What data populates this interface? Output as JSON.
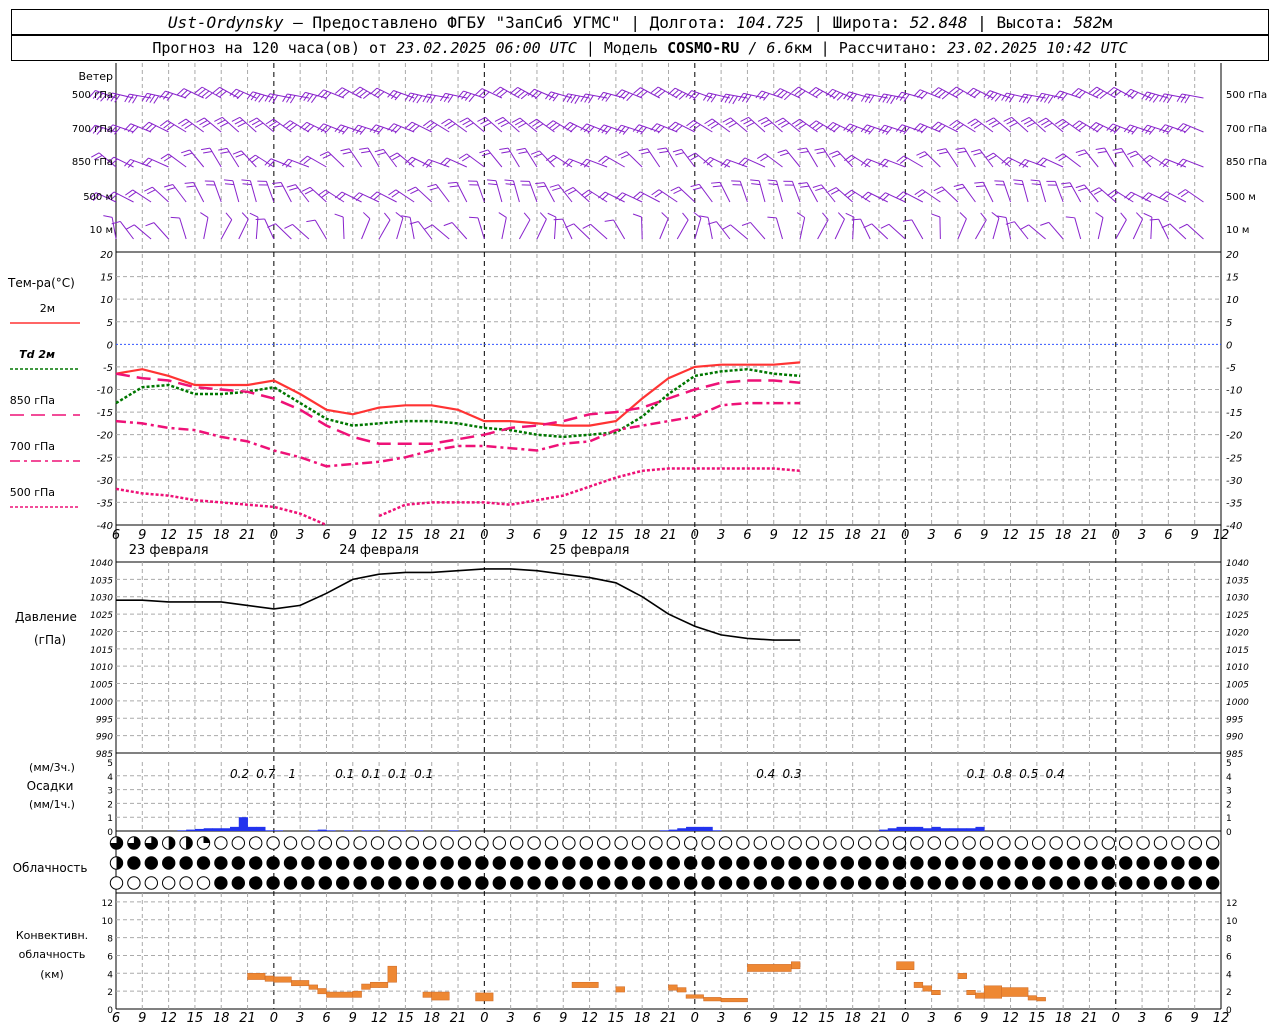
{
  "header": {
    "station": "Ust-Ordynsky",
    "provider": "— Предоставлено ФГБУ \"ЗапСиб УГМС\"",
    "lon_label": "Долгота:",
    "lon_value": "104.725",
    "lat_label": "Широта:",
    "lat_value": "52.848",
    "alt_label": "Высота:",
    "alt_value": "582",
    "alt_unit": "м",
    "sep": "|",
    "forecast_label": "Прогноз на 120 часа(ов) от",
    "forecast_from": "23.02.2025 06:00 UTC",
    "model_label": "Модель",
    "model_name": "COSMO-RU",
    "model_res": "/ 6.6",
    "model_res_unit": "км",
    "calc_label": "Рассчитано:",
    "calc_time": "23.02.2025 10:42 UTC"
  },
  "colors": {
    "t2m": "#ff3333",
    "td2m": "#007700",
    "t850": "#ee1177",
    "t700": "#ee1177",
    "t500": "#ee1177",
    "pressure": "#000000",
    "precip": "#2233ee",
    "convective": "#ee8833",
    "wind": "#8822cc",
    "zero_line": "#3355ff",
    "grid": "#aaaaaa"
  },
  "chart_data": [
    {
      "type": "wind_barbs",
      "title": "Ветер",
      "levels": [
        "500 гПа",
        "700 гПа",
        "850 гПа",
        "500 м",
        "10  м"
      ]
    },
    {
      "type": "line",
      "ylabel": "Тем-ра(°C)",
      "ylim": [
        -40,
        20
      ],
      "yticks": [
        20,
        15,
        10,
        5,
        0,
        -5,
        -10,
        -15,
        -20,
        -25,
        -30,
        -35,
        -40
      ],
      "x_hours": [
        0,
        3,
        6,
        9,
        12,
        15,
        18,
        21,
        24,
        27,
        30,
        33,
        36,
        39,
        42,
        45,
        48,
        51,
        54,
        57,
        60,
        63,
        66,
        69,
        72,
        75,
        78
      ],
      "series": [
        {
          "name": "2м",
          "values": [
            -6.5,
            -5.5,
            -7,
            -9,
            -9,
            -9,
            -8,
            -11,
            -14.5,
            -15.5,
            -14,
            -13.5,
            -13.5,
            -14.5,
            -17,
            -17,
            -17.5,
            -18,
            -18,
            -17,
            -12,
            -7.5,
            -5,
            -4.5,
            -4.5,
            -4.5,
            -4
          ]
        },
        {
          "name": "Td 2м",
          "values": [
            -13,
            -9.5,
            -9,
            -11,
            -11,
            -10.5,
            -9.5,
            -13,
            -16.5,
            -18,
            -17.5,
            -17,
            -17,
            -17.5,
            -18.5,
            -19,
            -20,
            -20.5,
            -20,
            -19.5,
            -16,
            -11,
            -7,
            -6,
            -5.5,
            -6.5,
            -7
          ]
        },
        {
          "name": "850 гПа",
          "values": [
            -6.5,
            -7.5,
            -8,
            -9.5,
            -10,
            -10.5,
            -12,
            -14.5,
            -18,
            -20.5,
            -22,
            -22,
            -22,
            -21,
            -20,
            -18.5,
            -18,
            -17,
            -15.5,
            -15,
            -14,
            -12,
            -10,
            -8.5,
            -8,
            -8,
            -8.5
          ]
        },
        {
          "name": "700 гПа",
          "values": [
            -17,
            -17.5,
            -18.5,
            -19,
            -20.5,
            -21.5,
            -23.5,
            -25,
            -27,
            -26.5,
            -26,
            -25,
            -23.5,
            -22.5,
            -22.5,
            -23,
            -23.5,
            -22,
            -21.5,
            -19,
            -18,
            -17,
            -16,
            -13.5,
            -13,
            -13,
            -13
          ]
        },
        {
          "name": "500 гПа",
          "values": [
            -32,
            -33,
            -33.5,
            -34.5,
            -35,
            -35.5,
            -36,
            -37.5,
            -40,
            null,
            -38,
            -35.5,
            -35,
            -35,
            -35,
            -35.5,
            -34.5,
            -33.5,
            -31.5,
            -29.5,
            -28,
            -27.5,
            -27.5,
            -27.5,
            -27.5,
            -27.5,
            -28
          ]
        }
      ]
    },
    {
      "type": "line",
      "ylabel": "Давление",
      "yunit": "(гПа)",
      "ylim": [
        985,
        1040
      ],
      "yticks": [
        1040,
        1035,
        1030,
        1025,
        1020,
        1015,
        1010,
        1005,
        1000,
        995,
        990,
        985
      ],
      "series": [
        {
          "name": "Давление",
          "values": [
            1029,
            1029,
            1028.5,
            1028.5,
            1028.5,
            1027.5,
            1026.5,
            1027.5,
            1031,
            1035,
            1036.5,
            1037,
            1037,
            1037.5,
            1038,
            1038,
            1037.5,
            1036.5,
            1035.5,
            1034,
            1030,
            1025,
            1021.5,
            1019,
            1018,
            1017.5,
            1017.5
          ]
        }
      ]
    },
    {
      "type": "bar",
      "ylabel": "Осадки",
      "unit_3h": "(мм/3ч.)",
      "unit_1h": "(мм/1ч.)",
      "ylim": [
        0,
        5
      ],
      "yticks": [
        5,
        4,
        3,
        2,
        1,
        0
      ],
      "totals_3h": [
        {
          "hour": 15,
          "value": "0.2"
        },
        {
          "hour": 18,
          "value": "0.7"
        },
        {
          "hour": 21,
          "value": "1"
        },
        {
          "hour": 27,
          "value": "0.1"
        },
        {
          "hour": 30,
          "value": "0.1"
        },
        {
          "hour": 33,
          "value": "0.1"
        },
        {
          "hour": 36,
          "value": "0.1"
        },
        {
          "hour": 75,
          "value": "0.4"
        },
        {
          "hour": 78,
          "value": "0.3"
        },
        {
          "hour": 99,
          "value": "0.1"
        },
        {
          "hour": 102,
          "value": "0.8"
        },
        {
          "hour": 105,
          "value": "0.5"
        },
        {
          "hour": 108,
          "value": "0.4"
        }
      ],
      "hourly": [
        [
          7,
          0.05
        ],
        [
          8,
          0.1
        ],
        [
          9,
          0.15
        ],
        [
          10,
          0.2
        ],
        [
          11,
          0.2
        ],
        [
          12,
          0.2
        ],
        [
          13,
          0.3
        ],
        [
          14,
          1.0
        ],
        [
          15,
          0.3
        ],
        [
          16,
          0.3
        ],
        [
          17,
          0.05
        ],
        [
          18,
          0.05
        ],
        [
          22,
          0.05
        ],
        [
          23,
          0.1
        ],
        [
          24,
          0.05
        ],
        [
          26,
          0.05
        ],
        [
          28,
          0.05
        ],
        [
          29,
          0.05
        ],
        [
          31,
          0.05
        ],
        [
          32,
          0.05
        ],
        [
          34,
          0.05
        ],
        [
          38,
          0.05
        ],
        [
          62,
          0.05
        ],
        [
          63,
          0.1
        ],
        [
          64,
          0.2
        ],
        [
          65,
          0.3
        ],
        [
          66,
          0.3
        ],
        [
          67,
          0.3
        ],
        [
          68,
          0.05
        ],
        [
          87,
          0.1
        ],
        [
          88,
          0.2
        ],
        [
          89,
          0.3
        ],
        [
          90,
          0.3
        ],
        [
          91,
          0.3
        ],
        [
          92,
          0.2
        ],
        [
          93,
          0.3
        ],
        [
          94,
          0.2
        ],
        [
          95,
          0.2
        ],
        [
          96,
          0.2
        ],
        [
          97,
          0.2
        ],
        [
          98,
          0.3
        ]
      ]
    },
    {
      "type": "cloud_symbols",
      "label": "Облачность",
      "rows": [
        "3332210000000000000000000000000000000000000000000000000000000000000000000000000000000000000000000000000000000000000000",
        "2444444444444444444444444444444444444444444444444444444444444444444444444444444444444444444444444444444444444444444444",
        "0000004444444444444444444444444444444444444444444444444444444444444444444444444444444444444444444444444444444444444444"
      ]
    },
    {
      "type": "bar",
      "ylabel": "Конвективн.",
      "ylabel2": "облачность",
      "yunit": "(км)",
      "ylim": [
        0,
        13
      ],
      "yticks": [
        12,
        10,
        8,
        6,
        4,
        2,
        0
      ],
      "segments": [
        [
          15,
          17,
          3.3,
          4.0
        ],
        [
          17,
          18,
          3.1,
          3.7
        ],
        [
          18,
          20,
          3.0,
          3.6
        ],
        [
          20,
          22,
          2.6,
          3.2
        ],
        [
          22,
          23,
          2.2,
          2.7
        ],
        [
          23,
          24,
          1.7,
          2.3
        ],
        [
          24,
          27,
          1.3,
          1.9
        ],
        [
          27,
          28,
          1.3,
          2.0
        ],
        [
          28,
          29,
          2.2,
          2.8
        ],
        [
          29,
          31,
          2.4,
          3.0
        ],
        [
          31,
          32,
          3.0,
          4.8
        ],
        [
          35,
          36,
          1.3,
          1.9
        ],
        [
          36,
          38,
          1.0,
          1.9
        ],
        [
          41,
          43,
          0.9,
          1.8
        ],
        [
          52,
          55,
          2.4,
          3.0
        ],
        [
          57,
          58,
          1.9,
          2.5
        ],
        [
          63,
          64,
          2.1,
          2.7
        ],
        [
          64,
          65,
          1.9,
          2.4
        ],
        [
          65,
          67,
          1.2,
          1.6
        ],
        [
          67,
          69,
          0.9,
          1.3
        ],
        [
          69,
          72,
          0.8,
          1.2
        ],
        [
          72,
          77,
          4.2,
          5.0
        ],
        [
          77,
          78,
          4.5,
          5.3
        ],
        [
          89,
          91,
          4.4,
          5.3
        ],
        [
          91,
          92,
          2.4,
          3.0
        ],
        [
          92,
          93,
          2.0,
          2.6
        ],
        [
          93,
          94,
          1.6,
          2.1
        ],
        [
          96,
          97,
          3.4,
          4.0
        ],
        [
          97,
          98,
          1.6,
          2.1
        ],
        [
          98,
          99,
          1.2,
          1.8
        ],
        [
          99,
          101,
          1.2,
          2.6
        ],
        [
          101,
          104,
          1.4,
          2.4
        ],
        [
          104,
          105,
          1.0,
          1.5
        ],
        [
          105,
          106,
          0.9,
          1.3
        ]
      ]
    }
  ],
  "time_axis": {
    "hour_labels": [
      "6",
      "9",
      "12",
      "15",
      "18",
      "21",
      "0",
      "3",
      "6",
      "9",
      "12",
      "15",
      "18",
      "21",
      "0",
      "3",
      "6",
      "9",
      "12",
      "15",
      "18",
      "21",
      "0",
      "3",
      "6",
      "9",
      "12"
    ],
    "day_labels": [
      "23 февраля",
      "24 февраля",
      "25 февраля"
    ]
  }
}
